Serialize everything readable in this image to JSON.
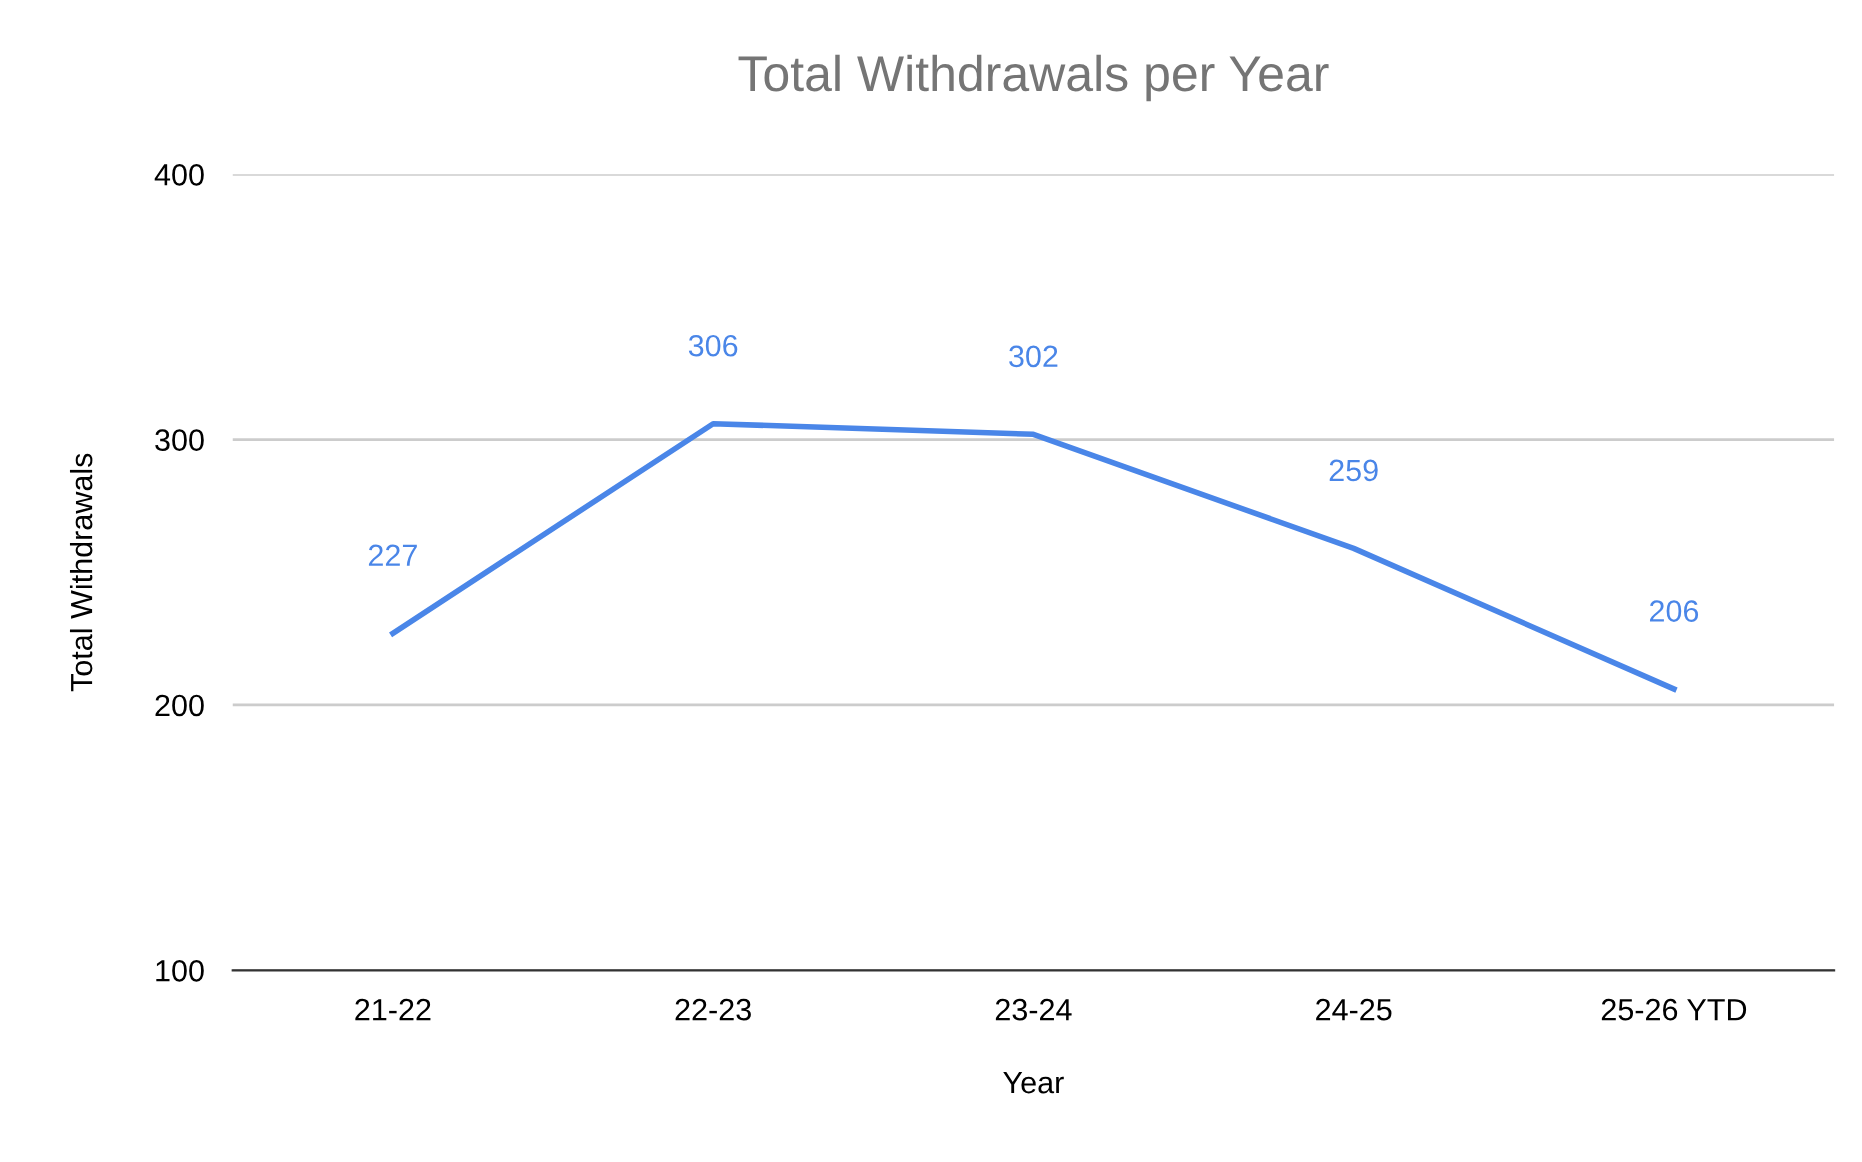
{
  "chart_data": {
    "type": "line",
    "title": "Total Withdrawals per Year",
    "xlabel": "Year",
    "ylabel": "Total Withdrawals",
    "categories": [
      "21-22",
      "22-23",
      "23-24",
      "24-25",
      "25-26 YTD"
    ],
    "series": [
      {
        "color": "#4a86e8",
        "values": [
          227,
          306,
          302,
          259,
          206
        ]
      }
    ],
    "ylim": [
      100,
      400
    ],
    "yticks": [
      100,
      200,
      300,
      400
    ],
    "grid": "y",
    "data_labels": true,
    "marker": "none",
    "line_style": "solid"
  }
}
